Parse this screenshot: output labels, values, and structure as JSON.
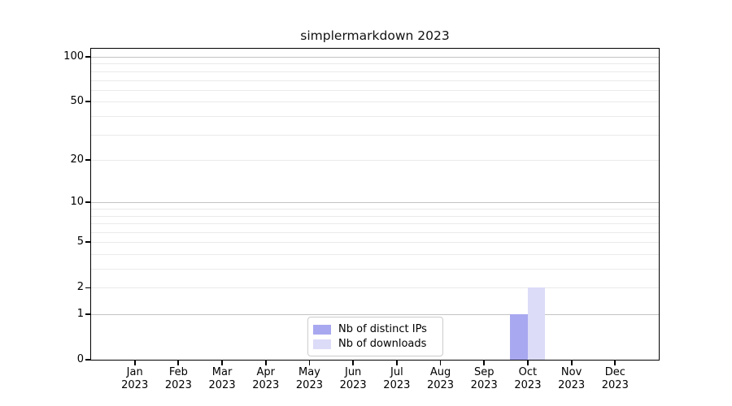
{
  "chart_data": {
    "type": "bar",
    "title": "simplermarkdown 2023",
    "categories": [
      "Jan 2023",
      "Feb 2023",
      "Mar 2023",
      "Apr 2023",
      "May 2023",
      "Jun 2023",
      "Jul 2023",
      "Aug 2023",
      "Sep 2023",
      "Oct 2023",
      "Nov 2023",
      "Dec 2023"
    ],
    "series": [
      {
        "name": "Nb of distinct IPs",
        "color": "#a8a8f0",
        "values": [
          0,
          0,
          0,
          0,
          0,
          0,
          0,
          0,
          0,
          1,
          0,
          0
        ]
      },
      {
        "name": "Nb of downloads",
        "color": "#dcdcf8",
        "values": [
          0,
          0,
          0,
          0,
          0,
          0,
          0,
          0,
          0,
          2,
          0,
          0
        ]
      }
    ],
    "xlabel": "",
    "ylabel": "",
    "yscale": "log1p",
    "ylim": [
      0,
      100
    ],
    "yticks": [
      0,
      1,
      2,
      5,
      10,
      20,
      50,
      100
    ],
    "minor_yticks": [
      3,
      4,
      6,
      7,
      8,
      9,
      30,
      40,
      60,
      70,
      80,
      90
    ],
    "grid": "horizontal",
    "legend_position": "bottom-center",
    "colors": {
      "background": "#ffffff",
      "axis": "#000000",
      "grid_decade": "#c3c3c3",
      "grid_minor": "#eaeaea",
      "legend_border": "#cccccc",
      "text": "#000000"
    }
  }
}
